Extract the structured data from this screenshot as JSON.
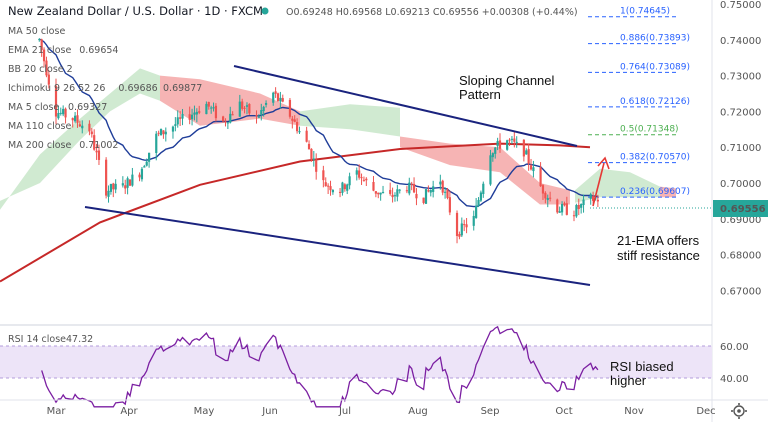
{
  "header": {
    "title": "New Zealand Dollar / U.S. Dollar · 1D · FXCM",
    "ohlc": "O0.69248 H0.69568 L0.69213 C0.69556 +0.00308 (+0.44%)"
  },
  "indicators": [
    {
      "label": "MA 50 close",
      "value": "",
      "color": "#c9c9c9"
    },
    {
      "label": "EMA 21 close",
      "value": "0.69654",
      "color": "#1f3d99"
    },
    {
      "label": "BB 20 close 2",
      "value": "",
      "color": "#c9c9c9"
    },
    {
      "label": "Ichimoku 9 26 52 26",
      "value": "0.69686",
      "value2": "0.69877",
      "color": "#1b8a1b",
      "color2": "#d32f2f"
    },
    {
      "label": "MA 5 close",
      "value": "0.69327",
      "color": "#2962ff"
    },
    {
      "label": "MA 110 close",
      "value": "",
      "color": "#c9c9c9"
    },
    {
      "label": "MA 200 close",
      "value": "0.71002",
      "color": "#c62828"
    }
  ],
  "price_axis": {
    "ticks": [
      "0.75000",
      "0.74000",
      "0.73000",
      "0.72000",
      "0.71000",
      "0.70000",
      "0.69000",
      "0.68000",
      "0.67000"
    ],
    "last_price": "0.69556",
    "last_price_color": "#26a69a"
  },
  "time_axis": {
    "labels": [
      "Mar",
      "Apr",
      "May",
      "Jun",
      "Jul",
      "Aug",
      "Sep",
      "Oct",
      "Nov",
      "Dec"
    ]
  },
  "fib_levels": [
    {
      "label": "1(0.74645)",
      "price": 0.74645,
      "color": "#2962ff"
    },
    {
      "label": "0.886(0.73893)",
      "price": 0.73893,
      "color": "#2962ff"
    },
    {
      "label": "0.764(0.73089)",
      "price": 0.73089,
      "color": "#2962ff"
    },
    {
      "label": "0.618(0.72126)",
      "price": 0.72126,
      "color": "#2962ff"
    },
    {
      "label": "0.5(0.71348)",
      "price": 0.71348,
      "color": "#4caf50"
    },
    {
      "label": "0.382(0.70570)",
      "price": 0.7057,
      "color": "#2962ff"
    },
    {
      "label": "0.236(0.69607)",
      "price": 0.69607,
      "color": "#2962ff"
    }
  ],
  "annotations": {
    "channel": "Sloping Channel Pattern",
    "ema": "21-EMA offers stiff resistance",
    "rsi": "RSI biased higher"
  },
  "rsi": {
    "label": "RSI 14 close",
    "value": "47.32",
    "ticks": [
      "60.00",
      "40.00"
    ],
    "line_color": "#7b1fa2",
    "band_color": "#ede4f8"
  },
  "chart_data": {
    "type": "candlestick",
    "y_range": [
      0.66,
      0.753
    ],
    "month_labels": [
      "Mar",
      "Apr",
      "May",
      "Jun",
      "Jul",
      "Aug",
      "Sep",
      "Oct",
      "Nov",
      "Dec"
    ],
    "candle_color_up": "#26a69a",
    "candle_color_down": "#ef5350",
    "close_points": [
      [
        "2021-02-22",
        0.74
      ],
      [
        "2021-03-01",
        0.72
      ],
      [
        "2021-03-08",
        0.718
      ],
      [
        "2021-03-15",
        0.715
      ],
      [
        "2021-03-22",
        0.698
      ],
      [
        "2021-03-29",
        0.699
      ],
      [
        "2021-04-05",
        0.703
      ],
      [
        "2021-04-12",
        0.713
      ],
      [
        "2021-04-19",
        0.716
      ],
      [
        "2021-04-26",
        0.719
      ],
      [
        "2021-05-03",
        0.722
      ],
      [
        "2021-05-10",
        0.717
      ],
      [
        "2021-05-17",
        0.722
      ],
      [
        "2021-05-24",
        0.718
      ],
      [
        "2021-05-31",
        0.725
      ],
      [
        "2021-06-07",
        0.719
      ],
      [
        "2021-06-14",
        0.711
      ],
      [
        "2021-06-21",
        0.7
      ],
      [
        "2021-06-28",
        0.698
      ],
      [
        "2021-07-05",
        0.703
      ],
      [
        "2021-07-12",
        0.698
      ],
      [
        "2021-07-19",
        0.696
      ],
      [
        "2021-07-26",
        0.699
      ],
      [
        "2021-08-02",
        0.696
      ],
      [
        "2021-08-09",
        0.701
      ],
      [
        "2021-08-16",
        0.686
      ],
      [
        "2021-08-23",
        0.69
      ],
      [
        "2021-08-30",
        0.709
      ],
      [
        "2021-09-06",
        0.712
      ],
      [
        "2021-09-13",
        0.709
      ],
      [
        "2021-09-20",
        0.699
      ],
      [
        "2021-09-27",
        0.693
      ],
      [
        "2021-10-04",
        0.692
      ],
      [
        "2021-10-11",
        0.6955
      ]
    ],
    "ema21_close": "0.69654",
    "ma200_close": "0.71002",
    "rsi14_close": "47.32"
  }
}
